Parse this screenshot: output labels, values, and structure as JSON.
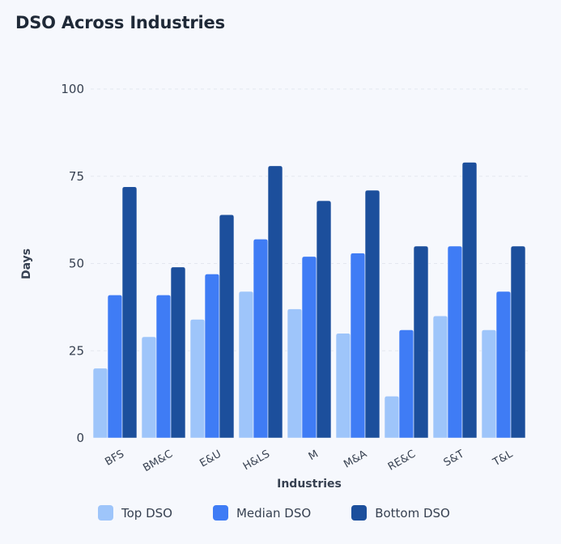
{
  "chart_data": {
    "type": "bar",
    "title": "DSO Across Industries",
    "xlabel": "Industries",
    "ylabel": "Days",
    "ylim": [
      0,
      100
    ],
    "yticks": [
      0,
      25,
      50,
      75,
      100
    ],
    "grid": true,
    "legend_position": "bottom",
    "categories": [
      "BFS",
      "BM&C",
      "E&U",
      "H&LS",
      "M",
      "M&A",
      "RE&C",
      "S&T",
      "T&L"
    ],
    "series": [
      {
        "name": "Top DSO",
        "color": "#9ec5fa",
        "values": [
          20,
          29,
          34,
          42,
          37,
          30,
          12,
          35,
          31
        ]
      },
      {
        "name": "Median DSO",
        "color": "#3f7cf5",
        "values": [
          41,
          41,
          47,
          57,
          52,
          53,
          31,
          55,
          42
        ]
      },
      {
        "name": "Bottom DSO",
        "color": "#1c4f9c",
        "values": [
          72,
          49,
          64,
          78,
          68,
          71,
          55,
          79,
          55
        ]
      }
    ]
  }
}
